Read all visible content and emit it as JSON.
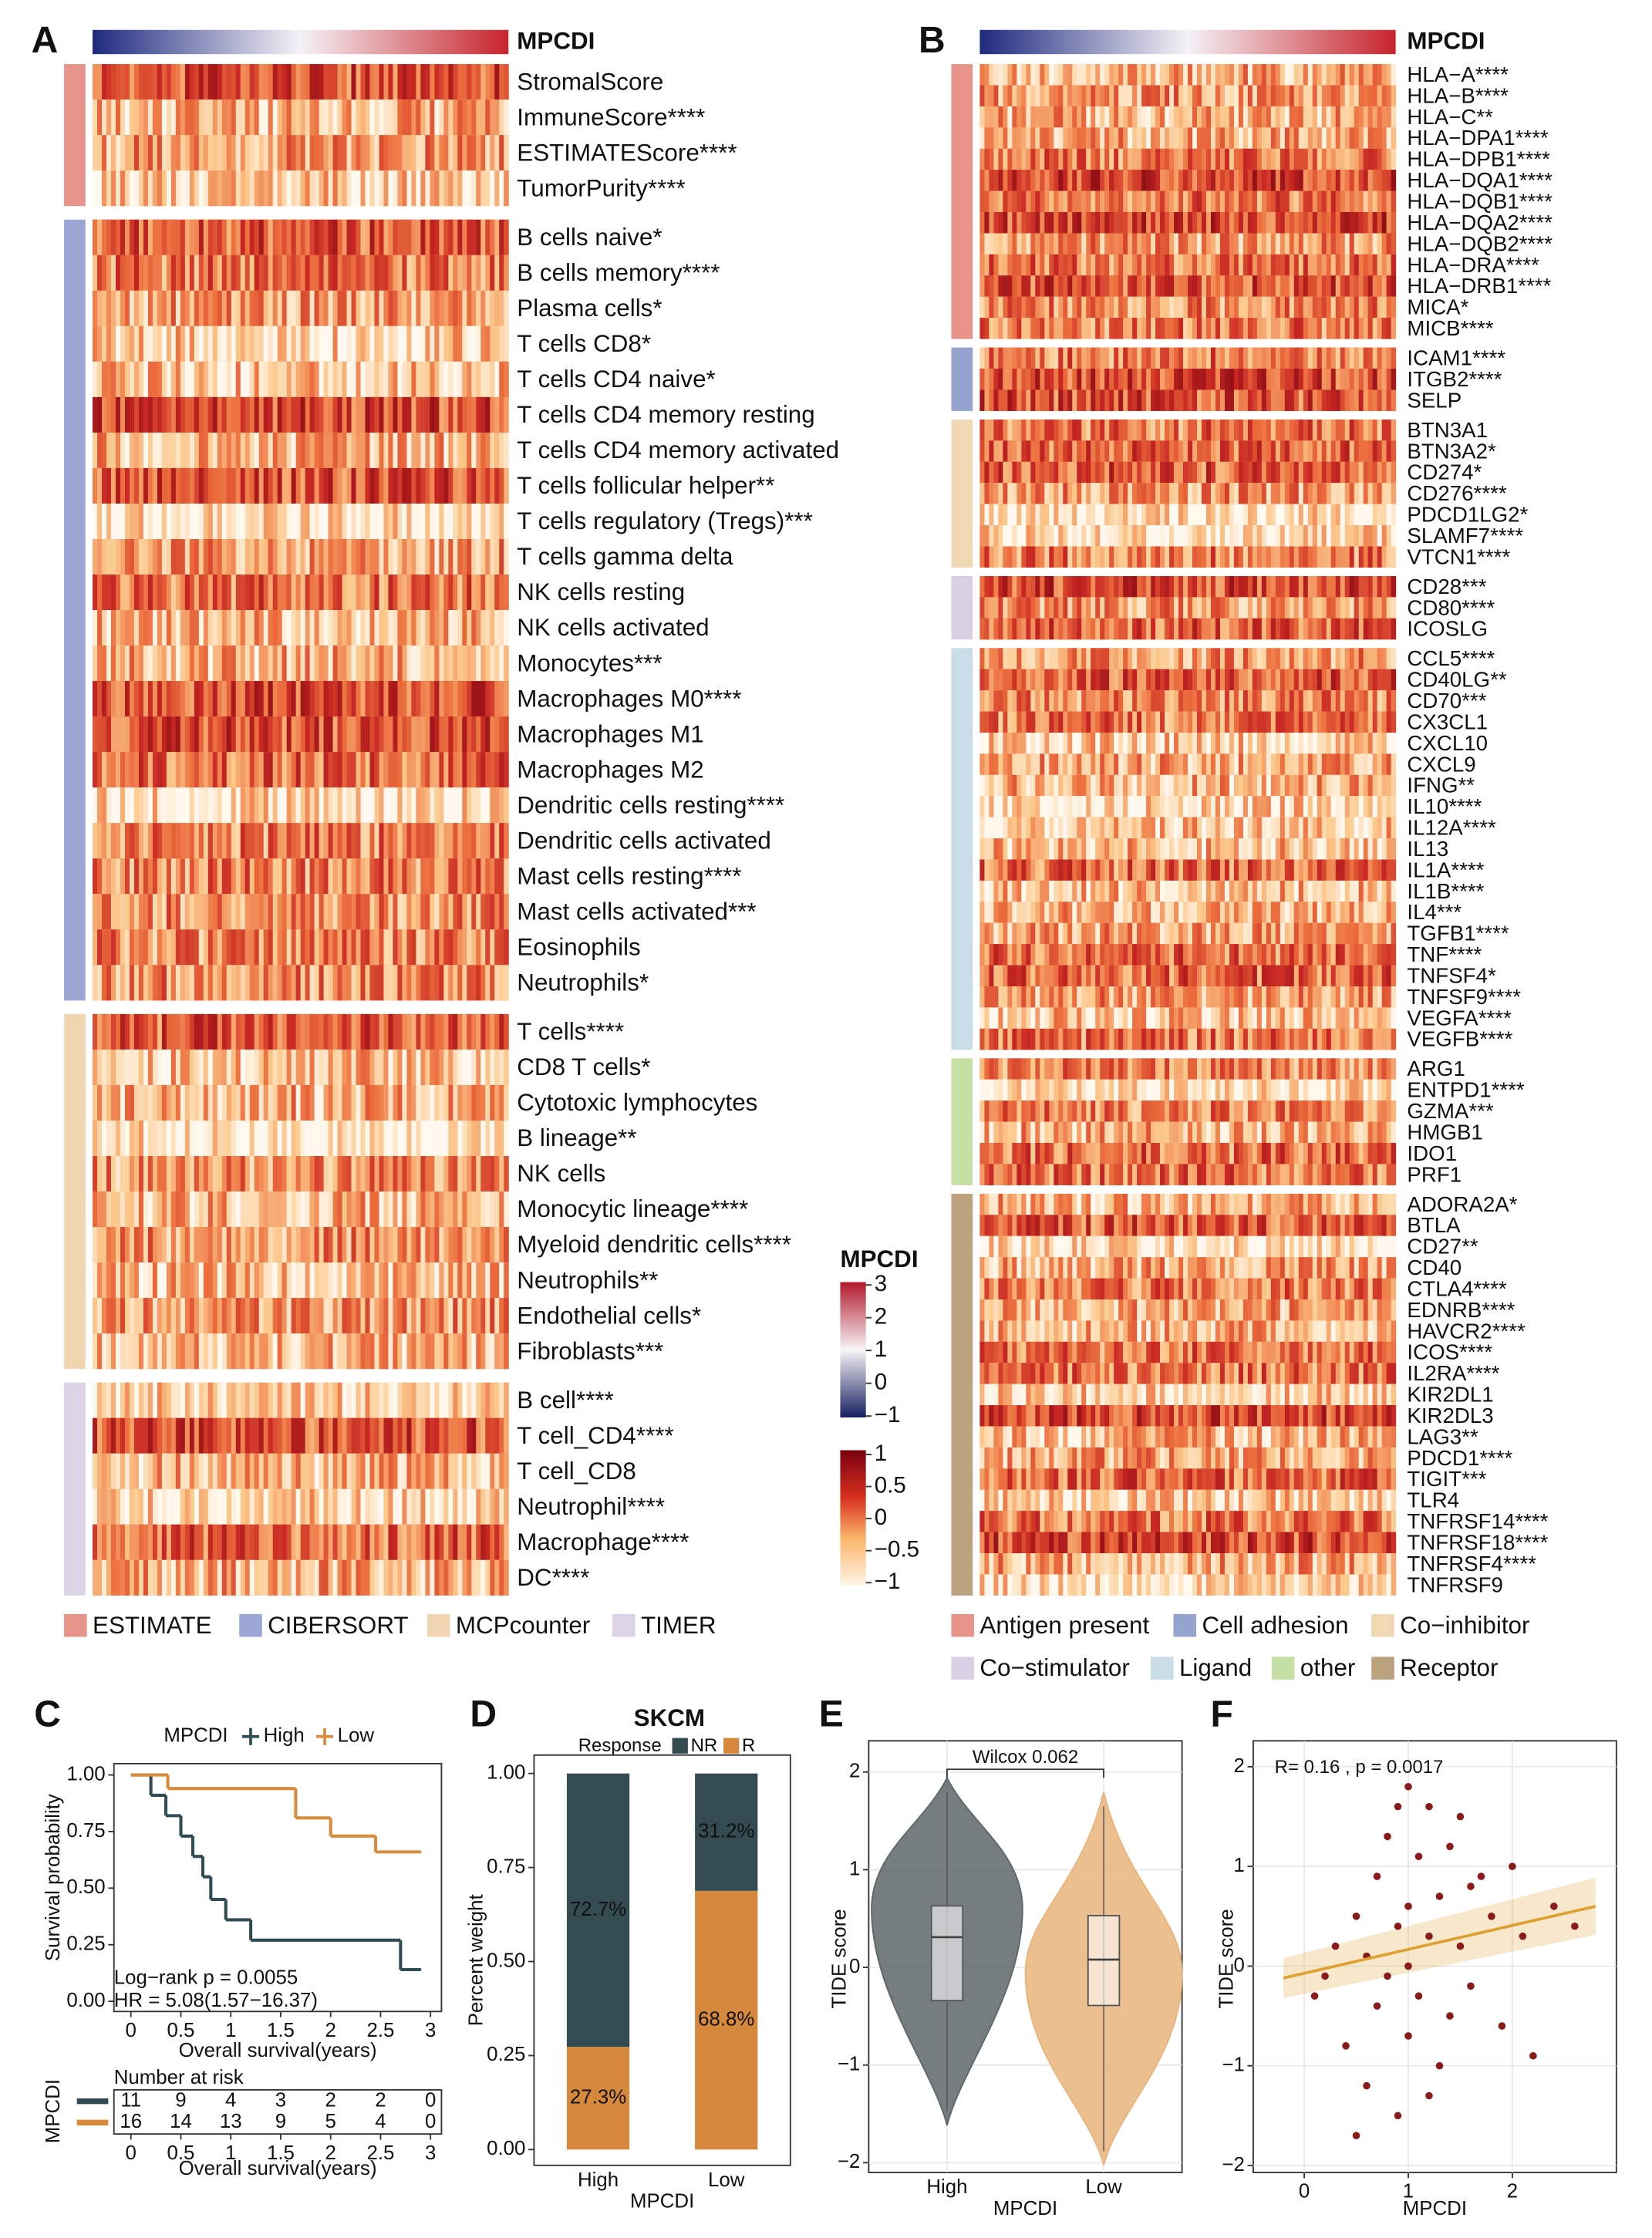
{
  "panel_a": {
    "letter": "A",
    "colorbar_label": "MPCDI",
    "groups": [
      {
        "name": "ESTIMATE",
        "color": "#e8938a",
        "rows": [
          "StromalScore",
          "ImmuneScore****",
          "ESTIMATEScore****",
          "TumorPurity****"
        ]
      },
      {
        "name": "CIBERSORT",
        "color": "#9ba6d4",
        "rows": [
          "B cells naive*",
          "B cells memory****",
          "Plasma cells*",
          "T cells CD8*",
          "T cells CD4 naive*",
          "T cells CD4 memory resting",
          "T cells CD4 memory activated",
          "T cells follicular helper**",
          "T cells regulatory (Tregs)***",
          "T cells gamma delta",
          "NK cells resting",
          "NK cells activated",
          "Monocytes***",
          "Macrophages M0****",
          "Macrophages M1",
          "Macrophages M2",
          "Dendritic cells resting****",
          "Dendritic cells activated",
          "Mast cells resting****",
          "Mast cells activated***",
          "Eosinophils",
          "Neutrophils*"
        ]
      },
      {
        "name": "MCPcounter",
        "color": "#f1d5b0",
        "rows": [
          "T cells****",
          "CD8 T cells*",
          "Cytotoxic lymphocytes",
          "B lineage**",
          "NK cells",
          "Monocytic lineage****",
          "Myeloid dendritic cells****",
          "Neutrophils**",
          "Endothelial cells*",
          "Fibroblasts***"
        ]
      },
      {
        "name": "TIMER",
        "color": "#dcd3e6",
        "rows": [
          "B cell****",
          "T cell_CD4****",
          "T cell_CD8",
          "Neutrophil****",
          "Macrophage****",
          "DC****"
        ]
      }
    ]
  },
  "panel_b": {
    "letter": "B",
    "colorbar_label": "MPCDI",
    "groups": [
      {
        "name": "Antigen present",
        "color": "#e8938a",
        "rows": [
          "HLA−A****",
          "HLA−B****",
          "HLA−C**",
          "HLA−DPA1****",
          "HLA−DPB1****",
          "HLA−DQA1****",
          "HLA−DQB1****",
          "HLA−DQA2****",
          "HLA−DQB2****",
          "HLA−DRA****",
          "HLA−DRB1****",
          "MICA*",
          "MICB****"
        ]
      },
      {
        "name": "Cell adhesion",
        "color": "#95a3cf",
        "rows": [
          "ICAM1****",
          "ITGB2****",
          "SELP"
        ]
      },
      {
        "name": "Co−inhibitor",
        "color": "#f1d8b4",
        "rows": [
          "BTN3A1",
          "BTN3A2*",
          "CD274*",
          "CD276****",
          "PDCD1LG2*",
          "SLAMF7****",
          "VTCN1****"
        ]
      },
      {
        "name": "Co−stimulator",
        "color": "#d9d0e4",
        "rows": [
          "CD28***",
          "CD80****",
          "ICOSLG"
        ]
      },
      {
        "name": "Ligand",
        "color": "#c8dde6",
        "rows": [
          "CCL5****",
          "CD40LG**",
          "CD70***",
          "CX3CL1",
          "CXCL10",
          "CXCL9",
          "IFNG**",
          "IL10****",
          "IL12A****",
          "IL13",
          "IL1A****",
          "IL1B****",
          "IL4***",
          "TGFB1****",
          "TNF****",
          "TNFSF4*",
          "TNFSF9****",
          "VEGFA****",
          "VEGFB****"
        ]
      },
      {
        "name": "other",
        "color": "#c5e0a5",
        "rows": [
          "ARG1",
          "ENTPD1****",
          "GZMA***",
          "HMGB1",
          "IDO1",
          "PRF1"
        ]
      },
      {
        "name": "Receptor",
        "color": "#bca17e",
        "rows": [
          "ADORA2A*",
          "BTLA",
          "CD27**",
          "CD40",
          "CTLA4****",
          "EDNRB****",
          "HAVCR2****",
          "ICOS****",
          "IL2RA****",
          "KIR2DL1",
          "KIR2DL3",
          "LAG3**",
          "PDCD1****",
          "TIGIT***",
          "TLR4",
          "TNFRSF14****",
          "TNFRSF18****",
          "TNFRSF4****",
          "TNFRSF9"
        ]
      }
    ]
  },
  "color_scales": {
    "title": "MPCDI",
    "scale1_ticks": [
      3,
      2,
      1,
      0,
      {
        "value": -1,
        "label": "−1"
      }
    ],
    "scale2_ticks": [
      1,
      0.5,
      0,
      {
        "value": -0.5,
        "label": "−0.5"
      },
      {
        "value": -1,
        "label": "−1"
      }
    ]
  },
  "chart_data": [
    {
      "letter": "C",
      "type": "line",
      "legend_title": "MPCDI",
      "xlabel": "Overall survival(years)",
      "ylabel": "Survival probability",
      "xlim": [
        -0.17,
        3.11
      ],
      "xticks": [
        0,
        0.5,
        1,
        1.5,
        2,
        2.5,
        3
      ],
      "ylim": [
        -0.045,
        1.05
      ],
      "yticks": [
        {
          "value": 0,
          "label": "0.00"
        },
        {
          "value": 0.25,
          "label": "0.25"
        },
        {
          "value": 0.5,
          "label": "0.50"
        },
        {
          "value": 0.75,
          "label": "0.75"
        },
        {
          "value": 1,
          "label": "1.00"
        }
      ],
      "series": [
        {
          "name": "High",
          "color": "#2f4b53",
          "x": [
            0,
            0.2,
            0.35,
            0.5,
            0.62,
            0.72,
            0.8,
            0.95,
            1.2,
            2.7,
            2.9
          ],
          "values": [
            1,
            0.91,
            0.82,
            0.73,
            0.64,
            0.55,
            0.45,
            0.36,
            0.27,
            0.14,
            0.14
          ]
        },
        {
          "name": "Low",
          "color": "#d98b3a",
          "x": [
            0,
            0.37,
            1.65,
            2.0,
            2.45,
            2.9
          ],
          "values": [
            1,
            0.94,
            0.81,
            0.73,
            0.66,
            0.66
          ]
        }
      ],
      "annotations": [
        "Log−rank p = 0.0055",
        "HR = 5.08(1.57−16.37)"
      ],
      "risk_table": {
        "title": "Number at risk",
        "label": "MPCDI",
        "rows": [
          [
            11,
            9,
            4,
            3,
            2,
            2,
            0
          ],
          [
            16,
            14,
            13,
            9,
            5,
            4,
            0
          ]
        ]
      }
    },
    {
      "letter": "D",
      "type": "bar",
      "title": "SKCM",
      "legend_title": "Response",
      "xlabel": "MPCDI",
      "ylabel": "Percent weight",
      "categories": [
        "High",
        "Low"
      ],
      "stacked": true,
      "ylim": [
        -0.042,
        1.049
      ],
      "yticks": [
        {
          "value": 0,
          "label": "0.00"
        },
        {
          "value": 0.25,
          "label": "0.25"
        },
        {
          "value": 0.5,
          "label": "0.50"
        },
        {
          "value": 0.75,
          "label": "0.75"
        },
        {
          "value": 1,
          "label": "1.00"
        }
      ],
      "series": [
        {
          "name": "NR",
          "color": "#344b52",
          "values": [
            0.727,
            0.312
          ],
          "value_labels": [
            "72.7%",
            "31.2%"
          ]
        },
        {
          "name": "R",
          "color": "#d6893c",
          "values": [
            0.273,
            0.688
          ],
          "value_labels": [
            "27.3%",
            "68.8%"
          ]
        }
      ]
    },
    {
      "letter": "E",
      "type": "violin",
      "xlabel": "MPCDI",
      "ylabel": "TIDE score",
      "categories": [
        "High",
        "Low"
      ],
      "colors": [
        "#5d6668",
        "#e9b47a"
      ],
      "ylim": [
        -2.1,
        2.32
      ],
      "yticks": [
        {
          "value": -2,
          "label": "−2"
        },
        {
          "value": -1,
          "label": "−1"
        },
        0,
        1,
        2
      ],
      "q1": [
        -0.34,
        -0.39
      ],
      "median": [
        0.31,
        0.08
      ],
      "q3": [
        0.63,
        0.53
      ],
      "annotations": [
        "Wilcox 0.062"
      ]
    },
    {
      "letter": "F",
      "type": "scatter",
      "xlabel": "MPCDI",
      "ylabel": "TIDE score",
      "color": "#8b1a1a",
      "fit_color": "#e0a030",
      "xlim": [
        -0.49,
        3.0
      ],
      "xticks": [
        0,
        1,
        2
      ],
      "ylim": [
        -2.07,
        2.26
      ],
      "yticks": [
        {
          "value": -2,
          "label": "−2"
        },
        {
          "value": -1,
          "label": "−1"
        },
        0,
        1,
        2
      ],
      "x": [
        0.1,
        0.3,
        0.4,
        0.5,
        0.6,
        0.6,
        0.7,
        0.7,
        0.8,
        0.8,
        0.9,
        0.9,
        1.0,
        1.0,
        1.0,
        1.1,
        1.1,
        1.2,
        1.2,
        1.3,
        1.3,
        1.4,
        1.4,
        1.5,
        1.5,
        1.6,
        1.7,
        1.8,
        1.9,
        2.0,
        2.1,
        2.2,
        2.4,
        2.6,
        0.2,
        0.5,
        0.9,
        1.2,
        1.6,
        1.0
      ],
      "values": [
        -0.3,
        0.2,
        -0.8,
        0.5,
        -1.2,
        0.1,
        0.9,
        -0.4,
        1.3,
        -0.1,
        0.4,
        -1.5,
        1.8,
        0.0,
        -0.7,
        1.1,
        -0.3,
        1.6,
        0.3,
        -1.0,
        0.7,
        1.2,
        -0.5,
        0.2,
        1.5,
        -0.2,
        0.9,
        0.5,
        -0.6,
        1.0,
        0.3,
        -0.9,
        0.6,
        0.4,
        -0.1,
        -1.7,
        1.6,
        -1.3,
        0.8,
        0.6
      ],
      "fit": {
        "x": [
          -0.2,
          2.8
        ],
        "values": [
          -0.12,
          0.6
        ]
      },
      "annotations": [
        "R= 0.16 , p = 0.0017"
      ]
    }
  ]
}
